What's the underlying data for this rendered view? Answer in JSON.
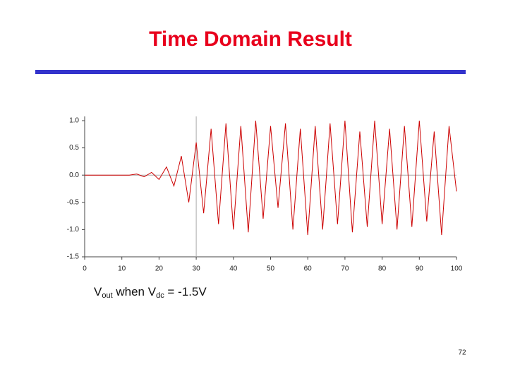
{
  "title": "Time Domain Result",
  "caption": {
    "v1": "V",
    "sub1": "out",
    "mid": " when V",
    "sub2": "dc",
    "tail": " = -1.5V"
  },
  "page_number": "72",
  "chart_data": {
    "type": "line",
    "color": "#cc0000",
    "x": [
      0,
      2,
      4,
      6,
      8,
      10,
      12,
      14,
      16,
      18,
      20,
      22,
      24,
      26,
      28,
      30,
      32,
      34,
      36,
      38,
      40,
      42,
      44,
      46,
      48,
      50,
      52,
      54,
      56,
      58,
      60,
      62,
      64,
      66,
      68,
      70,
      72,
      74,
      76,
      78,
      80,
      82,
      84,
      86,
      88,
      90,
      92,
      94,
      96,
      98,
      100
    ],
    "values": [
      0,
      0,
      0,
      0,
      0,
      0,
      0,
      0.02,
      -0.03,
      0.05,
      -0.08,
      0.15,
      -0.2,
      0.35,
      -0.5,
      0.6,
      -0.7,
      0.85,
      -0.9,
      0.95,
      -1.0,
      0.9,
      -1.05,
      1.0,
      -0.8,
      0.9,
      -0.6,
      0.95,
      -1.0,
      0.85,
      -1.1,
      0.9,
      -1.0,
      0.95,
      -0.9,
      1.0,
      -1.05,
      0.8,
      -0.95,
      1.0,
      -0.9,
      0.85,
      -1.0,
      0.9,
      -0.95,
      1.0,
      -0.85,
      0.8,
      -1.1,
      0.9,
      -0.3
    ],
    "xlim": [
      0,
      100
    ],
    "xticks": [
      0,
      10,
      20,
      30,
      40,
      50,
      60,
      70,
      80,
      90,
      100
    ],
    "ylim": [
      -1.5,
      1.0
    ],
    "yticks": [
      {
        "value": 1,
        "label": "1.0"
      },
      {
        "value": 0.5,
        "label": "0.5"
      },
      {
        "value": 0,
        "label": "0.0"
      },
      {
        "value": -0.5,
        "label": "-0.5"
      },
      {
        "value": -1,
        "label": "-1.0"
      },
      {
        "value": -1.5,
        "label": "-1.5"
      }
    ],
    "crosshair": {
      "x": 30,
      "y": 0
    }
  }
}
